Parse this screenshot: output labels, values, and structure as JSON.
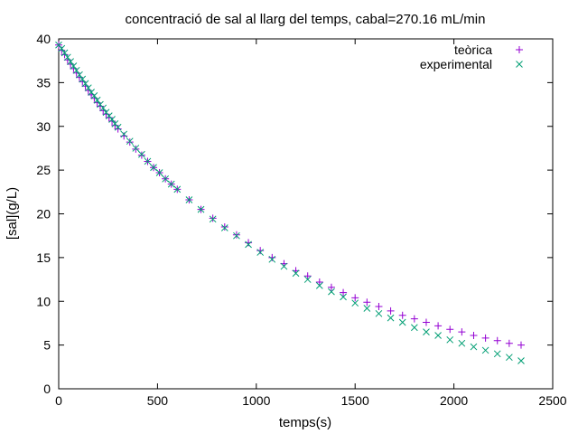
{
  "chart_data": {
    "type": "scatter",
    "title": "concentració de sal al llarg del temps, cabal=270.16 mL/min",
    "xlabel": "temps(s)",
    "ylabel": "[sal](g/L)",
    "xlim": [
      0,
      2500
    ],
    "ylim": [
      0,
      40
    ],
    "xticks": [
      0,
      500,
      1000,
      1500,
      2000,
      2500
    ],
    "yticks": [
      0,
      5,
      10,
      15,
      20,
      25,
      30,
      35,
      40
    ],
    "grid": false,
    "legend_position": "top-right",
    "series": [
      {
        "name": "teòrica",
        "marker": "plus",
        "color": "#9400d3",
        "x": [
          0,
          15,
          30,
          45,
          60,
          75,
          90,
          105,
          120,
          135,
          150,
          165,
          180,
          195,
          210,
          225,
          240,
          255,
          270,
          285,
          300,
          330,
          360,
          390,
          420,
          450,
          480,
          510,
          540,
          570,
          600,
          660,
          720,
          780,
          840,
          900,
          960,
          1020,
          1080,
          1140,
          1200,
          1260,
          1320,
          1380,
          1440,
          1500,
          1560,
          1620,
          1680,
          1740,
          1800,
          1860,
          1920,
          1980,
          2040,
          2100,
          2160,
          2220,
          2280,
          2340
        ],
        "y": [
          39.3,
          38.7,
          38.2,
          37.6,
          37.1,
          36.6,
          36.1,
          35.6,
          35.1,
          34.6,
          34.1,
          33.6,
          33.2,
          32.7,
          32.3,
          31.8,
          31.4,
          31.0,
          30.6,
          30.1,
          29.7,
          28.9,
          28.2,
          27.4,
          26.7,
          26.0,
          25.3,
          24.7,
          24.0,
          23.4,
          22.8,
          21.6,
          20.5,
          19.5,
          18.5,
          17.6,
          16.7,
          15.8,
          15.0,
          14.3,
          13.5,
          12.9,
          12.2,
          11.6,
          11.0,
          10.4,
          9.9,
          9.4,
          8.9,
          8.4,
          8.0,
          7.6,
          7.2,
          6.8,
          6.5,
          6.1,
          5.8,
          5.5,
          5.2,
          5.0
        ]
      },
      {
        "name": "experimental",
        "marker": "cross",
        "color": "#009e73",
        "x": [
          0,
          15,
          30,
          45,
          60,
          75,
          90,
          105,
          120,
          135,
          150,
          165,
          180,
          195,
          210,
          225,
          240,
          255,
          270,
          285,
          300,
          330,
          360,
          390,
          420,
          450,
          480,
          510,
          540,
          570,
          600,
          660,
          720,
          780,
          840,
          900,
          960,
          1020,
          1080,
          1140,
          1200,
          1260,
          1320,
          1380,
          1440,
          1500,
          1560,
          1620,
          1680,
          1740,
          1800,
          1860,
          1920,
          1980,
          2040,
          2100,
          2160,
          2220,
          2280,
          2340
        ],
        "y": [
          39.3,
          38.9,
          38.4,
          37.9,
          37.4,
          36.9,
          36.4,
          35.9,
          35.4,
          34.9,
          34.4,
          33.9,
          33.5,
          33.0,
          32.5,
          32.1,
          31.6,
          31.2,
          30.8,
          30.3,
          29.9,
          29.1,
          28.3,
          27.5,
          26.8,
          26.0,
          25.3,
          24.7,
          24.0,
          23.4,
          22.8,
          21.6,
          20.5,
          19.4,
          18.4,
          17.5,
          16.5,
          15.6,
          14.8,
          14.0,
          13.2,
          12.5,
          11.8,
          11.1,
          10.5,
          9.8,
          9.2,
          8.6,
          8.1,
          7.6,
          7.0,
          6.5,
          6.1,
          5.6,
          5.2,
          4.8,
          4.4,
          4.0,
          3.6,
          3.2
        ]
      }
    ]
  }
}
